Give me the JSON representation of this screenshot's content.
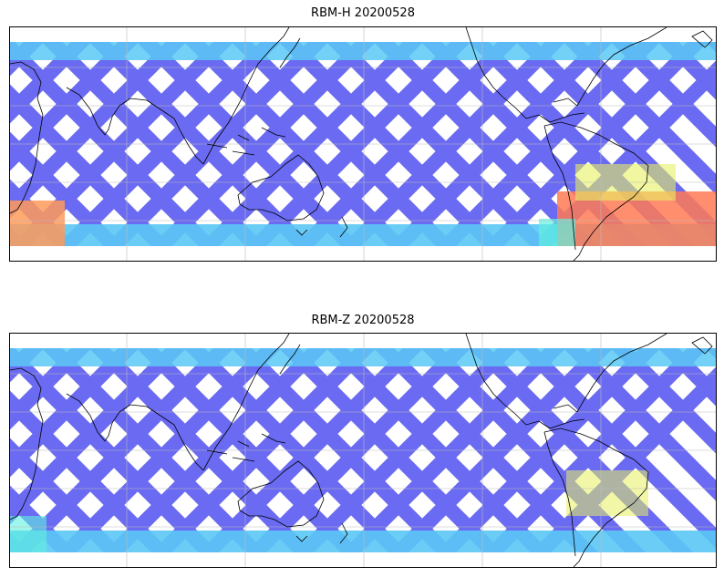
{
  "panels": [
    {
      "id": "top",
      "title": "RBM-H 20200528",
      "base_color": "#6a6af2",
      "hot_spots": [
        {
          "region": "south-atlantic-south-america",
          "color": "#ff7a55"
        },
        {
          "region": "far-west-southern-band",
          "color": "#ff9a5a"
        },
        {
          "region": "south-atlantic-north",
          "color": "#d8f060"
        }
      ]
    },
    {
      "id": "bottom",
      "title": "RBM-Z 20200528",
      "base_color": "#6a6af2",
      "hot_spots": [
        {
          "region": "south-atlantic",
          "color": "#d8f060"
        }
      ]
    }
  ],
  "colors": {
    "swath_low": "#6a6af2",
    "swath_mid": "#5bc8f5",
    "swath_cyan": "#5ff0e0",
    "swath_yellow": "#e8f060",
    "swath_hot": "#ff7a55",
    "coast": "#000000",
    "grid": "#bbbbbb"
  }
}
